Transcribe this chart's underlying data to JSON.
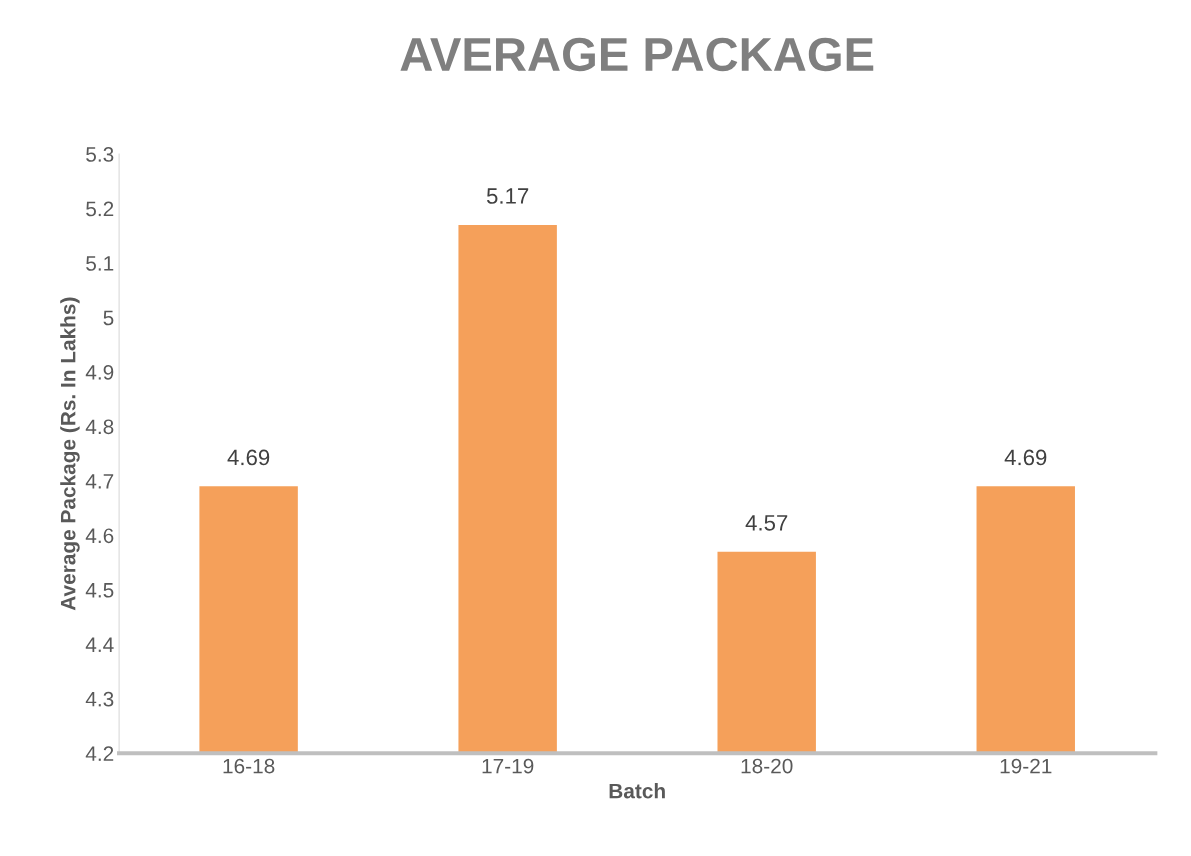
{
  "chart_data": {
    "type": "bar",
    "title": "AVERAGE PACKAGE",
    "xlabel": "Batch",
    "ylabel": "Average Package (Rs. In Lakhs)",
    "categories": [
      "16-18",
      "17-19",
      "18-20",
      "19-21"
    ],
    "values": [
      4.69,
      5.17,
      4.57,
      4.69
    ],
    "color": "#f5a05a",
    "ylim": [
      4.2,
      5.3
    ],
    "yticks": [
      4.2,
      4.3,
      4.4,
      4.5,
      4.6,
      4.7,
      4.8,
      4.9,
      5,
      5.1,
      5.2,
      5.3
    ],
    "data_labels": true,
    "grid": false,
    "legend": false
  }
}
